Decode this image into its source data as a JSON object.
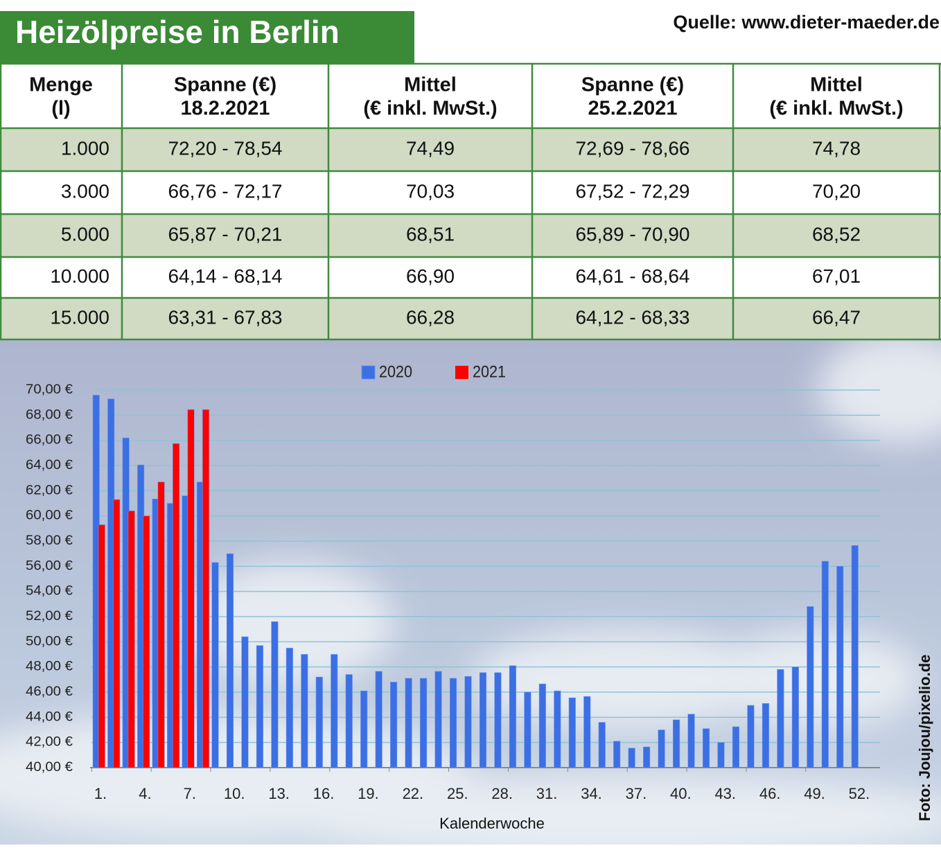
{
  "header": {
    "title": "Heizölpreise in Berlin",
    "source": "Quelle: www.dieter-maeder.de"
  },
  "table": {
    "header": [
      [
        "Menge",
        "(l)"
      ],
      [
        "Spanne (€)",
        "18.2.2021"
      ],
      [
        "Mittel",
        "(€ inkl. MwSt.)"
      ],
      [
        "Spanne (€)",
        "25.2.2021"
      ],
      [
        "Mittel",
        "(€ inkl. MwSt.)"
      ]
    ],
    "rows": [
      [
        "1.000",
        "72,20 - 78,54",
        "74,49",
        "72,69 - 78,66",
        "74,78"
      ],
      [
        "3.000",
        "66,76 - 72,17",
        "70,03",
        "67,52 - 72,29",
        "70,20"
      ],
      [
        "5.000",
        "65,87 - 70,21",
        "68,51",
        "65,89 - 70,90",
        "68,52"
      ],
      [
        "10.000",
        "64,14 - 68,14",
        "66,90",
        "64,61 - 68,64",
        "67,01"
      ],
      [
        "15.000",
        "63,31 - 67,83",
        "66,28",
        "64,12 - 68,33",
        "66,47"
      ]
    ]
  },
  "chart_data": {
    "type": "bar",
    "xlabel": "Kalenderwoche",
    "credit": "Foto: Joujou/pixelio.de",
    "legend": "top",
    "grid": true,
    "categories": [
      "1.",
      null,
      null,
      "4.",
      null,
      null,
      "7.",
      null,
      null,
      "10.",
      null,
      null,
      "13.",
      null,
      null,
      "16.",
      null,
      null,
      "19.",
      null,
      null,
      "22.",
      null,
      null,
      "25.",
      null,
      null,
      "28.",
      null,
      null,
      "31.",
      null,
      null,
      "34.",
      null,
      null,
      "37.",
      null,
      null,
      "40.",
      null,
      null,
      "43.",
      null,
      null,
      "46.",
      null,
      null,
      "49.",
      null,
      null,
      "52."
    ],
    "series": [
      {
        "name": "2020",
        "color": "#3b6fe3",
        "values": [
          69.6,
          69.3,
          66.2,
          64.05,
          61.35,
          61.0,
          61.6,
          62.7,
          56.3,
          57.0,
          50.4,
          49.7,
          51.6,
          49.5,
          49.0,
          47.2,
          49.0,
          47.4,
          46.1,
          47.65,
          46.8,
          47.1,
          47.1,
          47.65,
          47.1,
          47.25,
          47.55,
          47.55,
          48.1,
          46.0,
          46.65,
          46.1,
          45.55,
          45.65,
          43.6,
          42.1,
          41.55,
          41.65,
          43.0,
          43.8,
          44.25,
          43.1,
          42.0,
          43.25,
          44.95,
          45.1,
          47.8,
          48.0,
          52.8,
          56.4,
          56.0,
          57.65
        ]
      },
      {
        "name": "2021",
        "color": "#ff0000",
        "values": [
          59.3,
          61.3,
          60.4,
          60.0,
          62.7,
          65.75,
          68.45,
          68.45,
          null,
          null,
          null,
          null,
          null,
          null,
          null,
          null,
          null,
          null,
          null,
          null,
          null,
          null,
          null,
          null,
          null,
          null,
          null,
          null,
          null,
          null,
          null,
          null,
          null,
          null,
          null,
          null,
          null,
          null,
          null,
          null,
          null,
          null,
          null,
          null,
          null,
          null,
          null,
          null,
          null,
          null,
          null,
          null
        ]
      }
    ],
    "ylim": [
      40,
      70
    ],
    "yticks": [
      {
        "value": 40,
        "label": "40,00 €"
      },
      {
        "value": 42,
        "label": "42,00 €"
      },
      {
        "value": 44,
        "label": "44,00 €"
      },
      {
        "value": 46,
        "label": "46,00 €"
      },
      {
        "value": 48,
        "label": "48,00 €"
      },
      {
        "value": 50,
        "label": "50,00 €"
      },
      {
        "value": 52,
        "label": "52,00 €"
      },
      {
        "value": 54,
        "label": "54,00 €"
      },
      {
        "value": 56,
        "label": "56,00 €"
      },
      {
        "value": 58,
        "label": "58,00 €"
      },
      {
        "value": 60,
        "label": "60,00 €"
      },
      {
        "value": 62,
        "label": "62,00 €"
      },
      {
        "value": 64,
        "label": "64,00 €"
      },
      {
        "value": 66,
        "label": "66,00 €"
      },
      {
        "value": 68,
        "label": "68,00 €"
      },
      {
        "value": 70,
        "label": "70,00 €"
      }
    ]
  }
}
